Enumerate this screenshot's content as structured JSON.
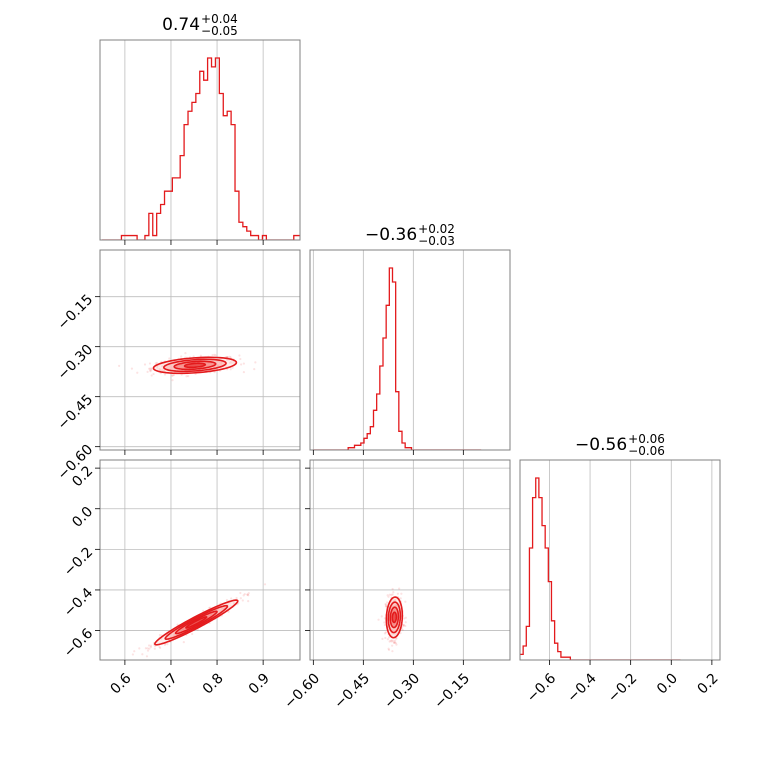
{
  "chart_data": {
    "type": "corner",
    "accent_color": "#e31a1c",
    "grid": true,
    "parameters": [
      {
        "index": 0,
        "median": 0.74,
        "plus": 0.04,
        "minus": 0.05,
        "range": [
          0.546,
          0.98
        ]
      },
      {
        "index": 1,
        "median": -0.36,
        "plus": 0.02,
        "minus": 0.03,
        "range": [
          -0.61,
          -0.01
        ]
      },
      {
        "index": 2,
        "median": -0.56,
        "plus": 0.06,
        "minus": 0.06,
        "range": [
          -0.745,
          0.24
        ]
      }
    ],
    "titles": [
      {
        "main": "0.74",
        "sup": "+0.04",
        "sub": "−0.05"
      },
      {
        "main": "−0.36",
        "sup": "+0.02",
        "sub": "−0.03"
      },
      {
        "main": "−0.56",
        "sup": "+0.06",
        "sub": "−0.06"
      }
    ],
    "axis_ticks": {
      "p0": {
        "values": [
          0.6,
          0.7,
          0.8,
          0.9
        ],
        "labels": [
          "0.6",
          "0.7",
          "0.8",
          "0.9"
        ]
      },
      "p1": {
        "values": [
          -0.6,
          -0.45,
          -0.3,
          -0.15
        ],
        "labels": [
          "−0.60",
          "−0.45",
          "−0.30",
          "−0.15"
        ]
      },
      "p2": {
        "values": [
          -0.6,
          -0.4,
          -0.2,
          0.0,
          0.2
        ],
        "labels": [
          "−0.6",
          "−0.4",
          "−0.2",
          "0.0",
          "0.2"
        ]
      }
    },
    "histograms": [
      {
        "param": 0,
        "bin_edges_start": 0.55,
        "bin_width": 0.0085,
        "counts": [
          0,
          0,
          0,
          0,
          0,
          1,
          1,
          1,
          1,
          0,
          0,
          1,
          6,
          1,
          6,
          8,
          11,
          11,
          14,
          14,
          19,
          26,
          29,
          31,
          33,
          38,
          36,
          41,
          39,
          41,
          33,
          28,
          29,
          26,
          11,
          4,
          3,
          2,
          1,
          1,
          0,
          1,
          0,
          0,
          0,
          0,
          0,
          0,
          0,
          1,
          1
        ]
      },
      {
        "param": 1,
        "bin_edges_start": -0.6,
        "bin_width": 0.0095,
        "counts": [
          0,
          0,
          0,
          0,
          0,
          0,
          0,
          0,
          0,
          0,
          0,
          1,
          1,
          2,
          2,
          3,
          5,
          7,
          10,
          17,
          24,
          36,
          48,
          62,
          78,
          72,
          25,
          8,
          3,
          1,
          1,
          0,
          0,
          0,
          0,
          0,
          0,
          0,
          0,
          0,
          0,
          0,
          0,
          0,
          0,
          0,
          0,
          0,
          0,
          0,
          0,
          0,
          0
        ]
      },
      {
        "param": 2,
        "bin_edges_start": -0.745,
        "bin_width": 0.0155,
        "counts": [
          2,
          5,
          12,
          40,
          58,
          65,
          58,
          48,
          40,
          28,
          14,
          6,
          3,
          1,
          1,
          1,
          0,
          0,
          0,
          0,
          0,
          0,
          0,
          0,
          0,
          0,
          0,
          0,
          0,
          0,
          0,
          0,
          0,
          0,
          0,
          0,
          0,
          0,
          0,
          0,
          0,
          0,
          0,
          0,
          0,
          0,
          0,
          0,
          0,
          0,
          0
        ]
      }
    ],
    "pairs": [
      {
        "x_param": 0,
        "y_param": 1,
        "mean": [
          0.752,
          -0.356
        ],
        "std": [
          0.045,
          0.012
        ],
        "corr": 0.35,
        "contour_levels_sigma": [
          0.5,
          1.0,
          1.5,
          2.0
        ]
      },
      {
        "x_param": 0,
        "y_param": 2,
        "mean": [
          0.755,
          -0.56
        ],
        "std": [
          0.045,
          0.055
        ],
        "corr": 0.96,
        "contour_levels_sigma": [
          0.5,
          1.0,
          1.5,
          2.0
        ]
      },
      {
        "x_param": 1,
        "y_param": 2,
        "mean": [
          -0.357,
          -0.535
        ],
        "std": [
          0.012,
          0.05
        ],
        "corr": 0.1,
        "contour_levels_sigma": [
          0.5,
          1.0,
          1.5,
          2.0
        ]
      }
    ]
  }
}
